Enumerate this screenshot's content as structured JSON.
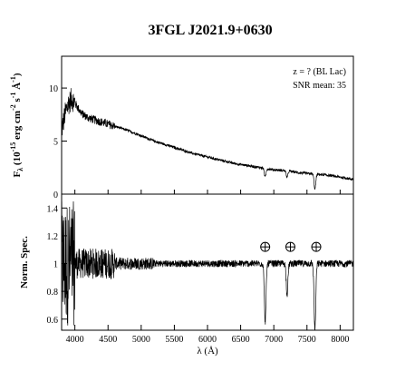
{
  "chart_data": [
    {
      "type": "line",
      "panel": "top",
      "title": "3FGL J2021.9+0630",
      "ylabel_main": "F",
      "ylabel_sub": "λ",
      "ylabel_rest_a": " (10",
      "ylabel_sup": "-15",
      "ylabel_rest_b": " erg cm",
      "ylabel_sup2": "-2",
      "ylabel_rest_c": " s",
      "ylabel_sup3": "-1",
      "ylabel_rest_d": " Å",
      "ylabel_sup4": "-1",
      "ylabel_rest_e": ")",
      "xlim": [
        3800,
        8200
      ],
      "ylim": [
        0,
        13
      ],
      "yticks": [
        0,
        5,
        10
      ],
      "ytick_labels": [
        "0",
        "5",
        "10"
      ],
      "annotations": [
        "z = ? (BL Lac)",
        "SNR mean: 35"
      ],
      "legend": "top-right",
      "grid": false,
      "continuum_x": [
        3800,
        3850,
        3900,
        3950,
        4000,
        4100,
        4200,
        4400,
        4600,
        4800,
        5000,
        5200,
        5400,
        5600,
        5800,
        6000,
        6200,
        6400,
        6600,
        6800,
        7000,
        7200,
        7400,
        7600,
        7800,
        8000,
        8200
      ],
      "continuum_y": [
        6.0,
        7.5,
        8.5,
        9.0,
        8.6,
        7.6,
        7.2,
        6.8,
        6.4,
        6.0,
        5.5,
        5.0,
        4.6,
        4.2,
        3.8,
        3.5,
        3.2,
        2.9,
        2.7,
        2.5,
        2.3,
        2.2,
        2.0,
        1.9,
        1.8,
        1.6,
        1.4
      ],
      "absorption_features": [
        {
          "x": 6870,
          "depth": 0.8
        },
        {
          "x": 7200,
          "depth": 0.6
        },
        {
          "x": 7620,
          "depth": 1.4
        }
      ]
    },
    {
      "type": "line",
      "panel": "bottom",
      "ylabel": "Norm. Spec.",
      "xlabel_main": "λ",
      "xlabel_unit": " (Å)",
      "xlim": [
        3800,
        8200
      ],
      "ylim": [
        0.52,
        1.5
      ],
      "yticks": [
        0.6,
        0.8,
        1.0,
        1.2,
        1.4
      ],
      "ytick_labels": [
        "0.6",
        "0.8",
        "1",
        "1.2",
        "1.4"
      ],
      "xticks": [
        4000,
        4500,
        5000,
        5500,
        6000,
        6500,
        7000,
        7500,
        8000
      ],
      "xtick_labels": [
        "4000",
        "4500",
        "5000",
        "5500",
        "6000",
        "6500",
        "7000",
        "7500",
        "8000"
      ],
      "telluric_markers_x": [
        6870,
        7250,
        7640
      ],
      "baseline": 1.0,
      "absorption_features": [
        {
          "x": 6870,
          "min": 0.58
        },
        {
          "x": 7200,
          "min": 0.78
        },
        {
          "x": 7620,
          "min": 0.52
        }
      ]
    }
  ]
}
